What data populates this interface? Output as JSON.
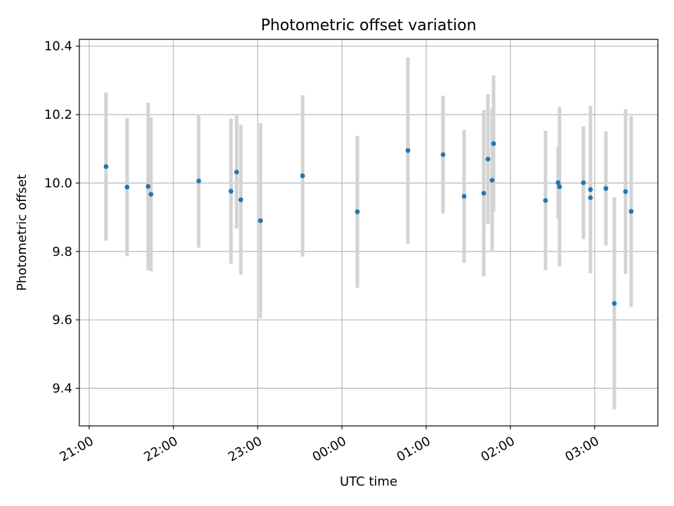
{
  "chart_data": {
    "type": "scatter",
    "title": "Photometric offset variation",
    "xlabel": "UTC time",
    "ylabel": "Photometric offset",
    "x_tick_labels": [
      "21:00",
      "22:00",
      "23:00",
      "00:00",
      "01:00",
      "02:00",
      "03:00"
    ],
    "y_tick_labels": [
      "9.4",
      "9.6",
      "9.8",
      "10.0",
      "10.2",
      "10.4"
    ],
    "x_ticks": [
      "21:00",
      "22:00",
      "23:00",
      "00:00",
      "01:00",
      "02:00",
      "03:00"
    ],
    "y_ticks": [
      9.4,
      9.6,
      9.8,
      10.0,
      10.2,
      10.4
    ],
    "xlim": [
      "20:53",
      "03:45"
    ],
    "ylim": [
      9.29,
      10.42
    ],
    "grid": true,
    "colors": {
      "marker": "#1f77b4",
      "errorbar": "#d3d3d3",
      "grid": "#b0b0b0"
    },
    "points": [
      {
        "time": "21:12",
        "y": 10.048,
        "err": 0.217
      },
      {
        "time": "21:27",
        "y": 9.988,
        "err": 0.202
      },
      {
        "time": "21:42",
        "y": 9.99,
        "err": 0.245
      },
      {
        "time": "21:44",
        "y": 9.967,
        "err": 0.225
      },
      {
        "time": "22:18",
        "y": 10.006,
        "err": 0.195
      },
      {
        "time": "22:41",
        "y": 9.976,
        "err": 0.212
      },
      {
        "time": "22:45",
        "y": 10.032,
        "err": 0.165
      },
      {
        "time": "22:48",
        "y": 9.951,
        "err": 0.219
      },
      {
        "time": "23:02",
        "y": 9.89,
        "err": 0.285
      },
      {
        "time": "23:32",
        "y": 10.021,
        "err": 0.236
      },
      {
        "time": "00:11",
        "y": 9.916,
        "err": 0.222
      },
      {
        "time": "00:47",
        "y": 10.095,
        "err": 0.272
      },
      {
        "time": "01:12",
        "y": 10.083,
        "err": 0.172
      },
      {
        "time": "01:27",
        "y": 9.961,
        "err": 0.194
      },
      {
        "time": "01:41",
        "y": 9.97,
        "err": 0.243
      },
      {
        "time": "01:44",
        "y": 10.07,
        "err": 0.19
      },
      {
        "time": "01:47",
        "y": 10.008,
        "err": 0.209
      },
      {
        "time": "01:48",
        "y": 10.115,
        "err": 0.2
      },
      {
        "time": "02:25",
        "y": 9.949,
        "err": 0.204
      },
      {
        "time": "02:34",
        "y": 10.001,
        "err": 0.105
      },
      {
        "time": "02:35",
        "y": 9.989,
        "err": 0.233
      },
      {
        "time": "02:52",
        "y": 10.001,
        "err": 0.165
      },
      {
        "time": "02:57",
        "y": 9.981,
        "err": 0.245
      },
      {
        "time": "02:57",
        "y": 9.957,
        "err": 0.043
      },
      {
        "time": "03:08",
        "y": 9.984,
        "err": 0.167
      },
      {
        "time": "03:14",
        "y": 9.648,
        "err": 0.31
      },
      {
        "time": "03:22",
        "y": 9.975,
        "err": 0.241
      },
      {
        "time": "03:26",
        "y": 9.917,
        "err": 0.279
      }
    ]
  }
}
